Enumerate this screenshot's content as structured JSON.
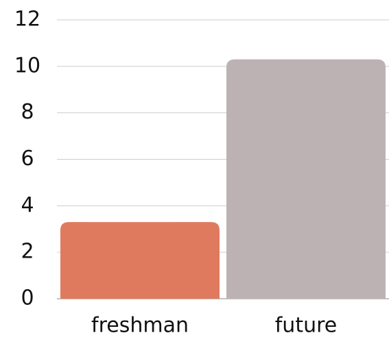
{
  "chart_data": {
    "type": "bar",
    "categories": [
      "freshman",
      "future"
    ],
    "values": [
      3.3,
      10.3
    ],
    "colors": [
      "#e07a5f",
      "#bdb2b3"
    ],
    "ylim": [
      0,
      12
    ],
    "yticks": [
      0,
      2,
      4,
      6,
      8,
      10,
      12
    ],
    "grid": true
  }
}
